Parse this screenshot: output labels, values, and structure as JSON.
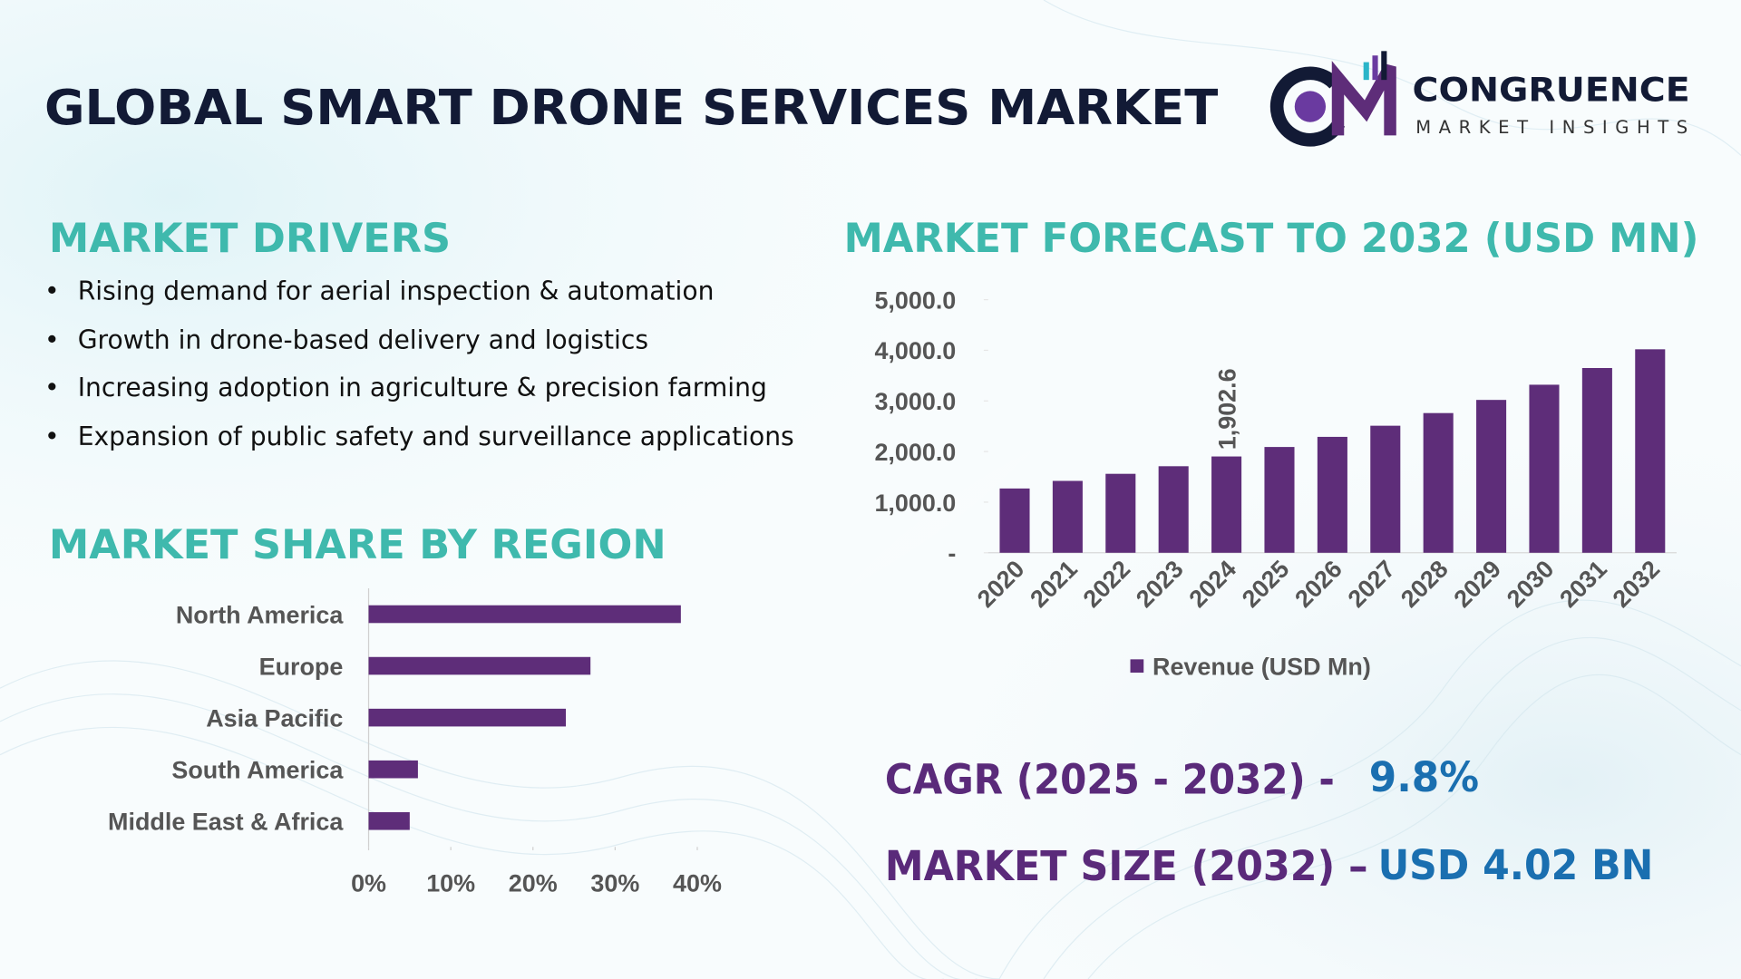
{
  "header": {
    "title": "GLOBAL SMART DRONE SERVICES MARKET",
    "logo_name": "CONGRUENCE",
    "logo_tagline": "MARKET INSIGHTS"
  },
  "drivers": {
    "title": "MARKET DRIVERS",
    "items": [
      "Rising demand for aerial inspection & automation",
      "Growth in drone-based delivery and logistics",
      "Increasing adoption in agriculture & precision farming",
      "Expansion of public safety and surveillance applications"
    ]
  },
  "highlights": {
    "cagr_label": "CAGR (2025 - 2032) -",
    "cagr_value": "9.8%",
    "size_label": "MARKET SIZE (2032) –",
    "size_value": "USD 4.02 BN"
  },
  "chart_data": [
    {
      "type": "bar",
      "title": "MARKET FORECAST TO 2032 (USD MN)",
      "categories": [
        "2020",
        "2021",
        "2022",
        "2023",
        "2024",
        "2025",
        "2026",
        "2027",
        "2028",
        "2029",
        "2030",
        "2031",
        "2032"
      ],
      "series": [
        {
          "name": "Revenue (USD Mn)",
          "color": "#5e2d79",
          "values": [
            1270,
            1420,
            1560,
            1710,
            1902.6,
            2090,
            2290,
            2510,
            2760,
            3020,
            3320,
            3650,
            4020
          ],
          "value_labels": [
            null,
            null,
            null,
            null,
            "1,902.6",
            null,
            null,
            null,
            null,
            null,
            null,
            null,
            null
          ]
        }
      ],
      "ylim": [
        0,
        5000
      ],
      "yticks": [
        {
          "value": 0,
          "label": "-"
        },
        {
          "value": 1000,
          "label": "1,000.0"
        },
        {
          "value": 2000,
          "label": "2,000.0"
        },
        {
          "value": 3000,
          "label": "3,000.0"
        },
        {
          "value": 4000,
          "label": "4,000.0"
        },
        {
          "value": 5000,
          "label": "5,000.0"
        }
      ],
      "legend": "bottom"
    },
    {
      "type": "hbar",
      "title": "MARKET SHARE BY REGION",
      "categories": [
        "North America",
        "Europe",
        "Asia Pacific",
        "South America",
        "Middle East & Africa"
      ],
      "values": [
        38,
        27,
        24,
        6,
        5
      ],
      "color": "#5e2d79",
      "xlim": [
        0,
        40
      ],
      "xticks": [
        {
          "value": 0,
          "label": "0%"
        },
        {
          "value": 10,
          "label": "10%"
        },
        {
          "value": 20,
          "label": "20%"
        },
        {
          "value": 30,
          "label": "30%"
        },
        {
          "value": 40,
          "label": "40%"
        }
      ]
    }
  ]
}
